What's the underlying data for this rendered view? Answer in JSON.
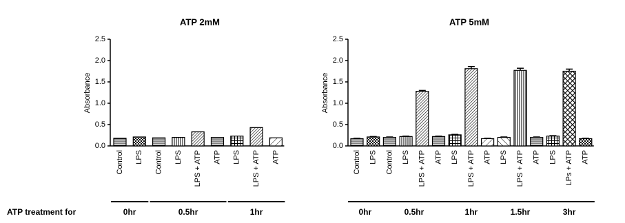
{
  "row_label": "ATP treatment for",
  "chart_data": [
    {
      "type": "bar",
      "title": "ATP  2mM",
      "y_label": "Absorbance",
      "groups": [
        {
          "label": "0hr",
          "categories": [
            "Control",
            "LPS"
          ]
        },
        {
          "label": "0.5hr",
          "categories": [
            "Control",
            "LPS",
            "LPS + ATP",
            "ATP"
          ]
        },
        {
          "label": "1hr",
          "categories": [
            "LPS",
            "LPS + ATP",
            "ATP"
          ]
        }
      ],
      "values": [
        0.18,
        0.21,
        0.19,
        0.2,
        0.33,
        0.2,
        0.23,
        0.43,
        0.19
      ],
      "fills": [
        "horiz",
        "check",
        "horiz",
        "vert",
        "diag",
        "horiz",
        "grid",
        "diag",
        "wide"
      ],
      "ylim": [
        0,
        2.5
      ],
      "yticks": [
        {
          "value": 0,
          "label": "0.0"
        },
        0.5,
        {
          "value": 1,
          "label": "1.0"
        },
        1.5,
        {
          "value": 2,
          "label": "2.0"
        },
        2.5
      ]
    },
    {
      "type": "bar",
      "title": "ATP  5mM",
      "y_label": "Absorbance",
      "groups": [
        {
          "label": "0hr",
          "categories": [
            "Control",
            "LPS"
          ]
        },
        {
          "label": "0.5hr",
          "categories": [
            "Control",
            "LPS",
            "LPS + ATP",
            "ATP"
          ]
        },
        {
          "label": "1hr",
          "categories": [
            "LPS",
            "LPS + ATP",
            "ATP"
          ]
        },
        {
          "label": "1.5hr",
          "categories": [
            "LPS",
            "LPS + ATP",
            "ATP"
          ]
        },
        {
          "label": "3hr",
          "categories": [
            "LPS",
            "LPs + ATP",
            "ATP"
          ]
        }
      ],
      "values": [
        0.17,
        0.21,
        0.2,
        0.22,
        1.28,
        0.22,
        0.26,
        1.81,
        0.17,
        0.2,
        1.77,
        0.2,
        0.23,
        1.75,
        0.17
      ],
      "errors": [
        0.01,
        0.01,
        0.01,
        0.01,
        0.02,
        0.01,
        0.01,
        0.05,
        0.01,
        0.01,
        0.05,
        0.01,
        0.01,
        0.05,
        0.01
      ],
      "fills": [
        "horiz",
        "check",
        "horiz",
        "vert",
        "diag",
        "horiz",
        "grid",
        "diag",
        "wide",
        "back",
        "vert",
        "horiz",
        "grid",
        "cross",
        "check"
      ],
      "ylim": [
        0,
        2.5
      ],
      "yticks": [
        {
          "value": 0,
          "label": "0.0"
        },
        0.5,
        {
          "value": 1,
          "label": "1.0"
        },
        1.5,
        {
          "value": 2,
          "label": "2.0"
        },
        2.5
      ]
    }
  ]
}
